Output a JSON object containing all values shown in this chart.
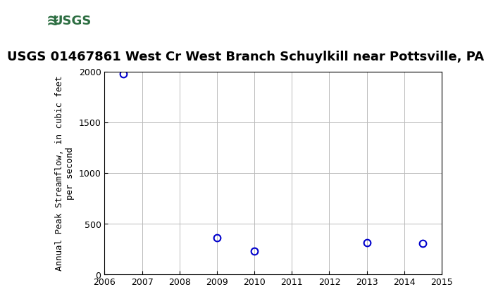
{
  "title": "USGS 01467861 West Cr West Branch Schuylkill near Pottsville, PA",
  "ylabel_line1": "Annual Peak Streamflow, in cubic feet",
  "ylabel_line2": "per second",
  "x_values": [
    2006.5,
    2009.0,
    2010.0,
    2013.0,
    2014.5
  ],
  "y_values": [
    1980,
    360,
    230,
    310,
    305
  ],
  "xlim": [
    2006,
    2015
  ],
  "ylim": [
    0,
    2000
  ],
  "yticks": [
    0,
    500,
    1000,
    1500,
    2000
  ],
  "xticks": [
    2006,
    2007,
    2008,
    2009,
    2010,
    2011,
    2012,
    2013,
    2014,
    2015
  ],
  "marker_color": "#0000cc",
  "marker_size": 7,
  "grid_color": "#bbbbbb",
  "background_color": "#ffffff",
  "header_bg_color": "#2d6e42",
  "header_logo_bg": "#ffffff",
  "title_fontsize": 13,
  "axis_label_fontsize": 9,
  "tick_fontsize": 9
}
